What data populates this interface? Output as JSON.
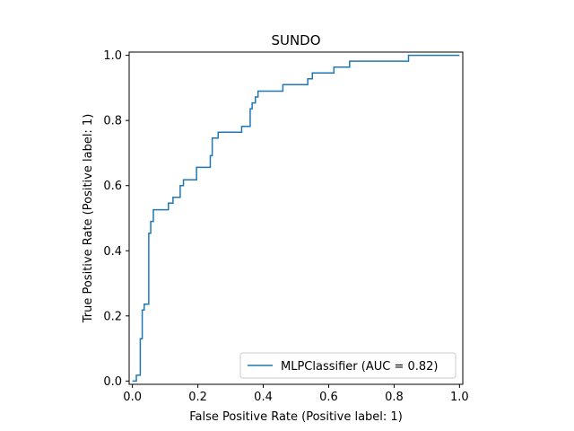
{
  "chart_data": {
    "type": "line",
    "title": "SUNDO",
    "xlabel": "False Positive Rate (Positive label: 1)",
    "ylabel": "True Positive Rate (Positive label: 1)",
    "xlim": [
      -0.01,
      1.01
    ],
    "ylim": [
      -0.01,
      1.01
    ],
    "xticks": [
      "0.0",
      "0.2",
      "0.4",
      "0.6",
      "0.8",
      "1.0"
    ],
    "yticks": [
      "0.0",
      "0.2",
      "0.4",
      "0.6",
      "0.8",
      "1.0"
    ],
    "grid": false,
    "legend_position": "lower-right",
    "series": [
      {
        "name": "MLPClassifier (AUC = 0.82)",
        "color": "#1f77b4",
        "x": [
          0.0,
          0.0,
          0.012,
          0.012,
          0.024,
          0.024,
          0.03,
          0.03,
          0.036,
          0.036,
          0.05,
          0.05,
          0.056,
          0.056,
          0.064,
          0.064,
          0.08,
          0.08,
          0.11,
          0.11,
          0.124,
          0.124,
          0.146,
          0.146,
          0.156,
          0.156,
          0.196,
          0.196,
          0.238,
          0.238,
          0.244,
          0.244,
          0.262,
          0.262,
          0.334,
          0.334,
          0.36,
          0.36,
          0.366,
          0.366,
          0.376,
          0.376,
          0.384,
          0.384,
          0.39,
          0.39,
          0.46,
          0.46,
          0.536,
          0.536,
          0.55,
          0.55,
          0.616,
          0.616,
          0.664,
          0.664,
          0.844,
          0.844,
          1.0
        ],
        "y": [
          0.0,
          0.0,
          0.0,
          0.018,
          0.018,
          0.13,
          0.13,
          0.218,
          0.218,
          0.236,
          0.236,
          0.454,
          0.454,
          0.49,
          0.49,
          0.526,
          0.526,
          0.526,
          0.526,
          0.546,
          0.546,
          0.564,
          0.564,
          0.6,
          0.6,
          0.618,
          0.618,
          0.656,
          0.656,
          0.692,
          0.692,
          0.746,
          0.746,
          0.764,
          0.764,
          0.782,
          0.782,
          0.836,
          0.836,
          0.854,
          0.854,
          0.872,
          0.872,
          0.89,
          0.89,
          0.89,
          0.89,
          0.91,
          0.91,
          0.928,
          0.928,
          0.946,
          0.946,
          0.964,
          0.964,
          0.982,
          0.982,
          1.0,
          1.0
        ]
      }
    ]
  }
}
